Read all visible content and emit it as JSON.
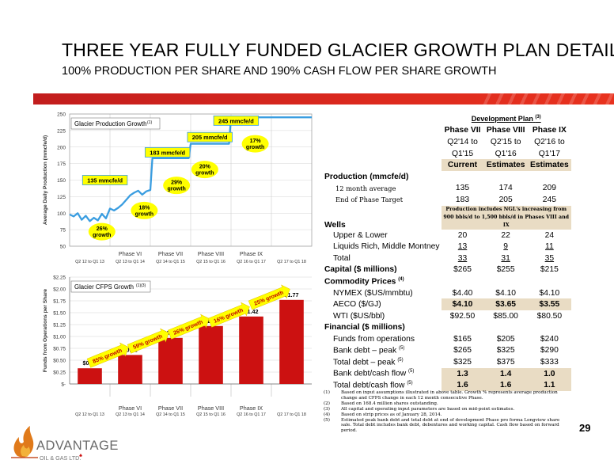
{
  "title": "THREE YEAR FULLY FUNDED GLACIER GROWTH PLAN DETAILS:",
  "subtitle": "100% PRODUCTION PER SHARE AND 190% CASH FLOW PER SHARE GROWTH",
  "page_number": "29",
  "logo": {
    "name": "ADVANTAGE",
    "sub": "OIL & GAS LTD."
  },
  "colors": {
    "accent_red": "#d62a1e",
    "line_blue": "#3a9de0",
    "bar_red": "#cc1111",
    "callout_yellow": "#ffff00",
    "highlight_beige": "#e9dcc4"
  },
  "chart_data": [
    {
      "type": "line",
      "title": "Glacier Production Growth",
      "title_note": "(1)",
      "ylabel": "Average Daily Production (mmcfe/d)",
      "ylim": [
        50,
        250
      ],
      "yticks": [
        "50",
        "75",
        "100",
        "125",
        "150",
        "175",
        "200",
        "225",
        "250"
      ],
      "xticks": [
        "Q2 12 to Q1 13",
        "Q2 13 to Q1 14",
        "Q2 14 to Q1 15",
        "Q2 15 to Q1 16",
        "Q2 16 to Q1 17",
        "Q2 17 to Q1 18"
      ],
      "phase_labels": [
        "Phase VI",
        "Phase VII",
        "Phase VIII",
        "Phase IX"
      ],
      "series": [
        {
          "x": [
            0,
            0.1,
            0.2,
            0.3,
            0.4,
            0.5,
            0.6,
            0.7,
            0.8,
            0.9,
            1,
            1.1,
            1.2,
            1.3,
            1.4,
            1.5,
            1.6,
            1.7,
            1.8,
            1.9,
            2,
            2.05,
            2.95,
            3,
            3.95,
            4,
            4.95,
            5,
            6
          ],
          "values": [
            98,
            95,
            100,
            90,
            96,
            88,
            93,
            89,
            99,
            92,
            107,
            104,
            108,
            113,
            120,
            127,
            131,
            134,
            128,
            133,
            135,
            183,
            183,
            205,
            205,
            245,
            245,
            245,
            245
          ]
        }
      ],
      "callouts": [
        "135 mmcfe/d",
        "183 mmcfe/d",
        "205 mmcfe/d",
        "245 mmcfe/d"
      ],
      "growth_labels": [
        "26%\ngrowth",
        "18%\ngrowth",
        "29%\ngrowth",
        "20%\ngrowth",
        "17%\ngrowth"
      ]
    },
    {
      "type": "bar",
      "title": "Glacier CFPS Growth",
      "title_note": "(1)(3)",
      "ylabel": "Funds from Operations per Share",
      "ylim": [
        0,
        2.25
      ],
      "yticks": [
        "$-",
        "$0.25",
        "$0.50",
        "$0.75",
        "$1.00",
        "$1.25",
        "$1.50",
        "$1.75",
        "$2.00",
        "$2.25"
      ],
      "categories": [
        "Q2 12 to Q1 13",
        "Q2 13 to Q1 14",
        "Q2 14 to Q1 15",
        "Q2 15 to Q1 16",
        "Q2 16 to Q1 17",
        "Q2 17 to Q1 18"
      ],
      "values": [
        0.33,
        0.61,
        0.97,
        1.22,
        1.42,
        1.77
      ],
      "value_labels": [
        "$0.33",
        "$0.61",
        "$0.97",
        "$1.22",
        "$1.42",
        "$1.77"
      ],
      "phase_labels": [
        "Phase VI",
        "Phase VII",
        "Phase VIII",
        "Phase IX"
      ],
      "growth_labels": [
        "85% growth",
        "59% growth",
        "26% growth",
        "16% growth",
        "25% growth"
      ]
    }
  ],
  "table": {
    "header": "Development Plan",
    "header_note": "(3)",
    "phases": [
      "Phase VII",
      "Phase VIII",
      "Phase IX"
    ],
    "periods_1": [
      "Q2'14 to",
      "Q2'15 to",
      "Q2'16 to"
    ],
    "periods_2": [
      "Q1'15",
      "Q1'16",
      "Q1'17"
    ],
    "status": [
      "Current",
      "Estimates",
      "Estimates"
    ],
    "production_label": "Production (mmcfe/d)",
    "avg_label": "12 month average",
    "avg": [
      "135",
      "174",
      "209"
    ],
    "end_label": "End of Phase Target",
    "end": [
      "183",
      "205",
      "245"
    ],
    "ngl_note": "Production includes NGL's increasing from 900 bbls/d to 1,500 bbls/d in Phases VIII and IX",
    "wells_label": "Wells",
    "upper_label": "Upper & Lower",
    "upper": [
      "20",
      "22",
      "24"
    ],
    "liquids_label": "Liquids Rich, Middle Montney",
    "liquids": [
      "13",
      "9",
      "11"
    ],
    "total_label": "Total",
    "total": [
      "33",
      "31",
      "35"
    ],
    "capital_label": "Capital ($ millions)",
    "capital": [
      "$265",
      "$255",
      "$215"
    ],
    "prices_label": "Commodity Prices",
    "prices_note": "(4)",
    "nymex_label": "NYMEX ($US/mmbtu)",
    "nymex": [
      "$4.40",
      "$4.10",
      "$4.10"
    ],
    "aeco_label": "AECO ($/GJ)",
    "aeco": [
      "$4.10",
      "$3.65",
      "$3.55"
    ],
    "wti_label": "WTI ($US/bbl)",
    "wti": [
      "$92.50",
      "$85.00",
      "$80.50"
    ],
    "financial_label": "Financial ($ millions)",
    "ffo_label": "Funds from operations",
    "ffo": [
      "$165",
      "$205",
      "$240"
    ],
    "bankpeak_label": "Bank debt – peak",
    "bankpeak_note": "(5)",
    "bankpeak": [
      "$265",
      "$325",
      "$290"
    ],
    "totaldebt_label": "Total debt – peak",
    "totaldebt_note": "(5)",
    "totaldebt": [
      "$325",
      "$375",
      "$333"
    ],
    "bankcf_label": "Bank debt/cash flow",
    "bankcf_note": "(5)",
    "bankcf": [
      "1.3",
      "1.4",
      "1.0"
    ],
    "totalcf_label": "Total debt/cash flow",
    "totalcf_note": "(5)",
    "totalcf": [
      "1.6",
      "1.6",
      "1.1"
    ]
  },
  "footnotes": [
    {
      "k": "(1)",
      "t": "Based on input assumptions illustrated in above table. Growth % represents average production change and CFPS change in each 12 month consecutive Phase."
    },
    {
      "k": "(2)",
      "t": "Based on 168.4 million shares outstanding."
    },
    {
      "k": "(3)",
      "t": "All capital and operating input parameters are based on mid-point estimates."
    },
    {
      "k": "(4)",
      "t": "Based on strip prices as of January 28, 2014."
    },
    {
      "k": "(5)",
      "t": "Estimated peak bank debt and total debt at end of development Phase pro forma Longview share sale. Total debt includes bank debt, debentures and working capital. Cash flow based on forward period."
    }
  ]
}
